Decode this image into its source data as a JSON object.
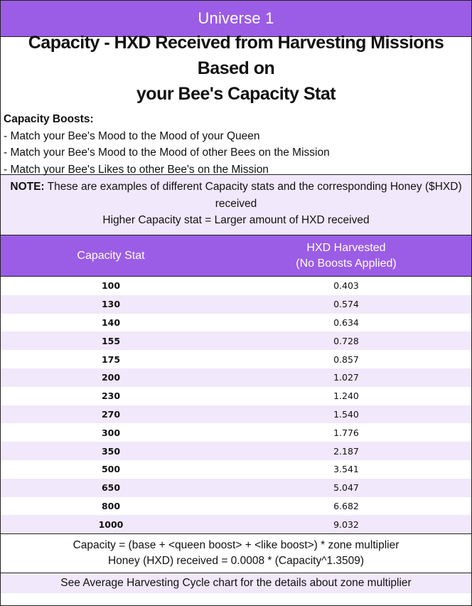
{
  "header": {
    "title": "Universe 1"
  },
  "title": {
    "line1": "Capacity - HXD Received from Harvesting Missions Based on",
    "line2": "your Bee's Capacity Stat"
  },
  "boosts": {
    "heading": "Capacity Boosts:",
    "items": [
      "- Match your Bee's Mood to the Mood of your Queen",
      "- Match your Bee's Mood to the Mood of other Bees on the Mission",
      "- Match your Bee's Likes to other Bee's on the Mission"
    ]
  },
  "note": {
    "label": "NOTE:",
    "text1": " These are examples of different Capacity stats and the corresponding Honey ($HXD)",
    "text2": "received",
    "text3": "Higher Capacity stat = Larger amount of HXD received"
  },
  "table": {
    "col1": "Capacity Stat",
    "col2_line1": "HXD Harvested",
    "col2_line2": "(No Boosts Applied)",
    "rows": [
      {
        "capacity": "100",
        "hxd": "0.403"
      },
      {
        "capacity": "130",
        "hxd": "0.574"
      },
      {
        "capacity": "140",
        "hxd": "0.634"
      },
      {
        "capacity": "155",
        "hxd": "0.728"
      },
      {
        "capacity": "175",
        "hxd": "0.857"
      },
      {
        "capacity": "200",
        "hxd": "1.027"
      },
      {
        "capacity": "230",
        "hxd": "1.240"
      },
      {
        "capacity": "270",
        "hxd": "1.540"
      },
      {
        "capacity": "300",
        "hxd": "1.776"
      },
      {
        "capacity": "350",
        "hxd": "2.187"
      },
      {
        "capacity": "500",
        "hxd": "3.541"
      },
      {
        "capacity": "650",
        "hxd": "5.047"
      },
      {
        "capacity": "800",
        "hxd": "6.682"
      },
      {
        "capacity": "1000",
        "hxd": "9.032"
      }
    ]
  },
  "formula": {
    "line1": "Capacity = (base + <queen boost> + <like boost>) * zone multiplier",
    "line2": "Honey (HXD) received = 0.0008 * (Capacity^1.3509)"
  },
  "footer": {
    "text": "See Average Harvesting Cycle chart for the details about zone multiplier"
  },
  "colors": {
    "accent": "#9b5de5",
    "tint": "#f1e8fb"
  }
}
